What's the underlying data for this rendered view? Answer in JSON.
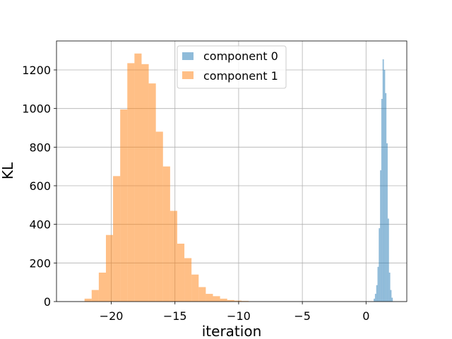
{
  "chart_data": {
    "type": "histogram",
    "title": "",
    "xlabel": "iteration",
    "ylabel": "KL",
    "xlim": [
      -24.3,
      3.2
    ],
    "ylim": [
      0,
      1350
    ],
    "grid": true,
    "legend_position": "upper-center",
    "xticks": [
      {
        "value": -20,
        "label": "−20"
      },
      {
        "value": -15,
        "label": "−15"
      },
      {
        "value": -10,
        "label": "−10"
      },
      {
        "value": -5,
        "label": "−5"
      },
      {
        "value": 0,
        "label": "0"
      }
    ],
    "yticks": [
      {
        "value": 0,
        "label": "0"
      },
      {
        "value": 200,
        "label": "200"
      },
      {
        "value": 400,
        "label": "400"
      },
      {
        "value": 600,
        "label": "600"
      },
      {
        "value": 800,
        "label": "800"
      },
      {
        "value": 1000,
        "label": "1000"
      },
      {
        "value": 1200,
        "label": "1200"
      }
    ],
    "series": [
      {
        "name": "component 0",
        "color": "#1f77b4",
        "opacity": 0.5,
        "bins": [
          {
            "x0": 0.6,
            "x1": 0.7,
            "count": 15
          },
          {
            "x0": 0.7,
            "x1": 0.8,
            "count": 40
          },
          {
            "x0": 0.8,
            "x1": 0.9,
            "count": 85
          },
          {
            "x0": 0.9,
            "x1": 1.0,
            "count": 180
          },
          {
            "x0": 1.0,
            "x1": 1.1,
            "count": 380
          },
          {
            "x0": 1.1,
            "x1": 1.2,
            "count": 680
          },
          {
            "x0": 1.2,
            "x1": 1.3,
            "count": 1050
          },
          {
            "x0": 1.3,
            "x1": 1.4,
            "count": 1255
          },
          {
            "x0": 1.4,
            "x1": 1.5,
            "count": 1200
          },
          {
            "x0": 1.5,
            "x1": 1.6,
            "count": 1080
          },
          {
            "x0": 1.6,
            "x1": 1.7,
            "count": 820
          },
          {
            "x0": 1.7,
            "x1": 1.8,
            "count": 430
          },
          {
            "x0": 1.8,
            "x1": 1.9,
            "count": 150
          },
          {
            "x0": 1.9,
            "x1": 2.0,
            "count": 60
          },
          {
            "x0": 2.0,
            "x1": 2.1,
            "count": 20
          }
        ]
      },
      {
        "name": "component 1",
        "color": "#ff7f0e",
        "opacity": 0.5,
        "bins": [
          {
            "x0": -22.1,
            "x1": -21.54,
            "count": 15
          },
          {
            "x0": -21.54,
            "x1": -20.98,
            "count": 60
          },
          {
            "x0": -20.98,
            "x1": -20.42,
            "count": 150
          },
          {
            "x0": -20.42,
            "x1": -19.86,
            "count": 345
          },
          {
            "x0": -19.86,
            "x1": -19.3,
            "count": 650
          },
          {
            "x0": -19.3,
            "x1": -18.74,
            "count": 995
          },
          {
            "x0": -18.74,
            "x1": -18.18,
            "count": 1235
          },
          {
            "x0": -18.18,
            "x1": -17.62,
            "count": 1285
          },
          {
            "x0": -17.62,
            "x1": -17.06,
            "count": 1230
          },
          {
            "x0": -17.06,
            "x1": -16.5,
            "count": 1130
          },
          {
            "x0": -16.5,
            "x1": -15.94,
            "count": 880
          },
          {
            "x0": -15.94,
            "x1": -15.38,
            "count": 700
          },
          {
            "x0": -15.38,
            "x1": -14.82,
            "count": 470
          },
          {
            "x0": -14.82,
            "x1": -14.26,
            "count": 300
          },
          {
            "x0": -14.26,
            "x1": -13.7,
            "count": 225
          },
          {
            "x0": -13.7,
            "x1": -13.14,
            "count": 140
          },
          {
            "x0": -13.14,
            "x1": -12.58,
            "count": 75
          },
          {
            "x0": -12.58,
            "x1": -12.02,
            "count": 40
          },
          {
            "x0": -12.02,
            "x1": -11.46,
            "count": 28
          },
          {
            "x0": -11.46,
            "x1": -10.9,
            "count": 15
          },
          {
            "x0": -10.9,
            "x1": -10.34,
            "count": 8
          },
          {
            "x0": -10.34,
            "x1": -9.78,
            "count": 5
          },
          {
            "x0": -9.78,
            "x1": -9.22,
            "count": 3
          }
        ]
      }
    ]
  }
}
